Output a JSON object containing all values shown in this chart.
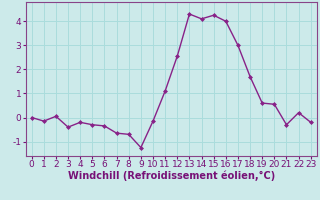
{
  "x": [
    0,
    1,
    2,
    3,
    4,
    5,
    6,
    7,
    8,
    9,
    10,
    11,
    12,
    13,
    14,
    15,
    16,
    17,
    18,
    19,
    20,
    21,
    22,
    23
  ],
  "y": [
    0.0,
    -0.15,
    0.05,
    -0.4,
    -0.2,
    -0.3,
    -0.35,
    -0.65,
    -0.7,
    -1.25,
    -0.15,
    1.1,
    2.55,
    4.3,
    4.1,
    4.25,
    4.0,
    3.0,
    1.7,
    0.6,
    0.55,
    -0.3,
    0.2,
    -0.2
  ],
  "line_color": "#882288",
  "marker": "D",
  "marker_size": 2.0,
  "linewidth": 1.0,
  "xlabel": "Windchill (Refroidissement éolien,°C)",
  "ylim": [
    -1.6,
    4.8
  ],
  "xlim": [
    -0.5,
    23.5
  ],
  "yticks": [
    -1,
    0,
    1,
    2,
    3,
    4
  ],
  "xticks": [
    0,
    1,
    2,
    3,
    4,
    5,
    6,
    7,
    8,
    9,
    10,
    11,
    12,
    13,
    14,
    15,
    16,
    17,
    18,
    19,
    20,
    21,
    22,
    23
  ],
  "grid_color": "#aadcdc",
  "bg_color": "#cceaea",
  "tick_color": "#771177",
  "tick_fontsize": 6.5,
  "xlabel_fontsize": 7.0,
  "spine_color": "#884488"
}
